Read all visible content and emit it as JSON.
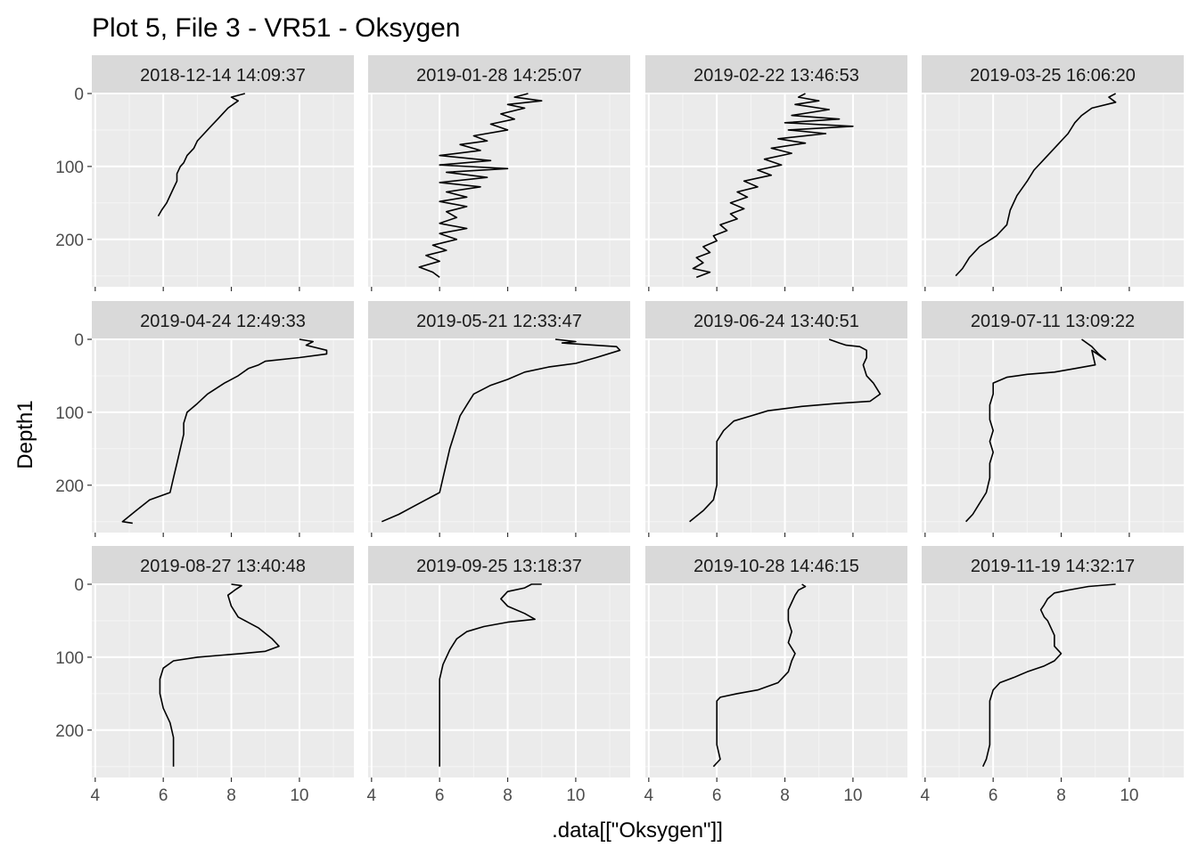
{
  "title": "Plot 5, File 3 - VR51  -  Oksygen",
  "chart_data": {
    "type": "line",
    "title": "Plot 5, File 3 - VR51  -  Oksygen",
    "xlabel": ".data[[\"Oksygen\"]]",
    "ylabel": "Depth1",
    "xlim": [
      3.9,
      11.6
    ],
    "ylim": [
      0,
      265
    ],
    "y_reversed": true,
    "grid": true,
    "xticks": [
      "4",
      "6",
      "8",
      "10"
    ],
    "yticks": [
      "0",
      "100",
      "200"
    ],
    "facets": [
      {
        "label": "2018-12-14 14:09:37",
        "points": [
          [
            8.4,
            0
          ],
          [
            8.0,
            5
          ],
          [
            8.2,
            10
          ],
          [
            7.9,
            20
          ],
          [
            7.6,
            35
          ],
          [
            7.4,
            45
          ],
          [
            7.2,
            55
          ],
          [
            7.0,
            65
          ],
          [
            6.9,
            75
          ],
          [
            6.7,
            85
          ],
          [
            6.6,
            95
          ],
          [
            6.5,
            100
          ],
          [
            6.4,
            110
          ],
          [
            6.4,
            120
          ],
          [
            6.3,
            130
          ],
          [
            6.2,
            140
          ],
          [
            6.1,
            150
          ],
          [
            5.95,
            160
          ],
          [
            5.85,
            168
          ]
        ]
      },
      {
        "label": "2019-01-28 14:25:07",
        "points": [
          [
            8.6,
            0
          ],
          [
            8.2,
            5
          ],
          [
            9.0,
            10
          ],
          [
            8.0,
            15
          ],
          [
            8.5,
            20
          ],
          [
            7.8,
            28
          ],
          [
            8.2,
            35
          ],
          [
            7.5,
            42
          ],
          [
            8.0,
            50
          ],
          [
            7.0,
            58
          ],
          [
            7.4,
            65
          ],
          [
            6.6,
            70
          ],
          [
            7.2,
            78
          ],
          [
            6.0,
            85
          ],
          [
            7.5,
            92
          ],
          [
            6.0,
            98
          ],
          [
            8.0,
            103
          ],
          [
            6.2,
            108
          ],
          [
            7.4,
            115
          ],
          [
            6.0,
            122
          ],
          [
            7.2,
            128
          ],
          [
            6.2,
            135
          ],
          [
            6.8,
            142
          ],
          [
            6.0,
            148
          ],
          [
            6.8,
            155
          ],
          [
            6.2,
            162
          ],
          [
            6.5,
            170
          ],
          [
            6.0,
            178
          ],
          [
            6.8,
            185
          ],
          [
            6.0,
            192
          ],
          [
            6.5,
            200
          ],
          [
            5.8,
            208
          ],
          [
            6.2,
            215
          ],
          [
            5.6,
            222
          ],
          [
            6.0,
            230
          ],
          [
            5.4,
            238
          ],
          [
            5.8,
            245
          ],
          [
            6.0,
            252
          ]
        ]
      },
      {
        "label": "2019-02-22 13:46:53",
        "points": [
          [
            8.6,
            0
          ],
          [
            8.4,
            5
          ],
          [
            9.0,
            10
          ],
          [
            8.3,
            15
          ],
          [
            9.3,
            22
          ],
          [
            8.2,
            30
          ],
          [
            9.6,
            35
          ],
          [
            8.0,
            40
          ],
          [
            10.0,
            45
          ],
          [
            8.1,
            50
          ],
          [
            9.2,
            55
          ],
          [
            7.8,
            62
          ],
          [
            8.6,
            68
          ],
          [
            7.6,
            75
          ],
          [
            8.2,
            82
          ],
          [
            7.4,
            90
          ],
          [
            7.9,
            98
          ],
          [
            7.2,
            105
          ],
          [
            7.6,
            112
          ],
          [
            6.8,
            120
          ],
          [
            7.2,
            128
          ],
          [
            6.6,
            135
          ],
          [
            6.9,
            142
          ],
          [
            6.4,
            150
          ],
          [
            6.8,
            158
          ],
          [
            6.4,
            165
          ],
          [
            6.6,
            172
          ],
          [
            6.1,
            180
          ],
          [
            6.3,
            188
          ],
          [
            5.9,
            195
          ],
          [
            6.0,
            202
          ],
          [
            5.6,
            210
          ],
          [
            5.8,
            218
          ],
          [
            5.4,
            225
          ],
          [
            5.6,
            232
          ],
          [
            5.3,
            240
          ],
          [
            5.8,
            245
          ],
          [
            5.4,
            252
          ]
        ]
      },
      {
        "label": "2019-03-25 16:06:20",
        "points": [
          [
            9.6,
            0
          ],
          [
            9.4,
            5
          ],
          [
            9.6,
            12
          ],
          [
            8.9,
            20
          ],
          [
            8.6,
            30
          ],
          [
            8.4,
            40
          ],
          [
            8.2,
            55
          ],
          [
            7.8,
            75
          ],
          [
            7.5,
            90
          ],
          [
            7.2,
            105
          ],
          [
            7.0,
            120
          ],
          [
            6.7,
            140
          ],
          [
            6.5,
            160
          ],
          [
            6.4,
            180
          ],
          [
            6.1,
            195
          ],
          [
            5.6,
            210
          ],
          [
            5.3,
            225
          ],
          [
            5.1,
            240
          ],
          [
            4.9,
            250
          ]
        ]
      },
      {
        "label": "2019-04-24 12:49:33",
        "points": [
          [
            10.0,
            0
          ],
          [
            10.4,
            3
          ],
          [
            10.2,
            8
          ],
          [
            10.8,
            15
          ],
          [
            10.8,
            20
          ],
          [
            10.0,
            25
          ],
          [
            9.0,
            30
          ],
          [
            8.8,
            35
          ],
          [
            8.5,
            40
          ],
          [
            8.2,
            50
          ],
          [
            7.8,
            60
          ],
          [
            7.3,
            75
          ],
          [
            7.0,
            88
          ],
          [
            6.7,
            100
          ],
          [
            6.6,
            115
          ],
          [
            6.6,
            130
          ],
          [
            6.5,
            150
          ],
          [
            6.4,
            170
          ],
          [
            6.3,
            190
          ],
          [
            6.2,
            210
          ],
          [
            5.6,
            220
          ],
          [
            5.2,
            235
          ],
          [
            4.8,
            250
          ],
          [
            5.1,
            252
          ]
        ]
      },
      {
        "label": "2019-05-21 12:33:47",
        "points": [
          [
            9.4,
            0
          ],
          [
            10.0,
            3
          ],
          [
            9.6,
            5
          ],
          [
            11.2,
            10
          ],
          [
            11.3,
            15
          ],
          [
            10.6,
            25
          ],
          [
            10.0,
            33
          ],
          [
            9.2,
            38
          ],
          [
            8.5,
            45
          ],
          [
            8.0,
            55
          ],
          [
            7.5,
            63
          ],
          [
            7.0,
            75
          ],
          [
            6.8,
            90
          ],
          [
            6.6,
            105
          ],
          [
            6.5,
            120
          ],
          [
            6.4,
            135
          ],
          [
            6.3,
            150
          ],
          [
            6.2,
            170
          ],
          [
            6.1,
            190
          ],
          [
            6.0,
            210
          ],
          [
            5.4,
            225
          ],
          [
            4.8,
            240
          ],
          [
            4.3,
            250
          ]
        ]
      },
      {
        "label": "2019-06-24 13:40:51",
        "points": [
          [
            9.3,
            0
          ],
          [
            9.6,
            5
          ],
          [
            9.8,
            8
          ],
          [
            10.2,
            10
          ],
          [
            10.4,
            15
          ],
          [
            10.4,
            25
          ],
          [
            10.3,
            35
          ],
          [
            10.4,
            50
          ],
          [
            10.6,
            60
          ],
          [
            10.8,
            75
          ],
          [
            10.5,
            85
          ],
          [
            9.5,
            88
          ],
          [
            8.5,
            92
          ],
          [
            7.5,
            98
          ],
          [
            7.0,
            105
          ],
          [
            6.5,
            112
          ],
          [
            6.2,
            125
          ],
          [
            6.0,
            140
          ],
          [
            6.0,
            160
          ],
          [
            6.0,
            180
          ],
          [
            6.0,
            200
          ],
          [
            5.9,
            220
          ],
          [
            5.6,
            235
          ],
          [
            5.2,
            250
          ]
        ]
      },
      {
        "label": "2019-07-11 13:09:22",
        "points": [
          [
            8.6,
            0
          ],
          [
            8.9,
            10
          ],
          [
            9.1,
            20
          ],
          [
            9.3,
            28
          ],
          [
            8.9,
            15
          ],
          [
            9.0,
            35
          ],
          [
            8.4,
            40
          ],
          [
            7.8,
            45
          ],
          [
            7.0,
            48
          ],
          [
            6.4,
            52
          ],
          [
            6.0,
            60
          ],
          [
            6.0,
            75
          ],
          [
            5.9,
            90
          ],
          [
            5.9,
            110
          ],
          [
            6.0,
            125
          ],
          [
            5.9,
            140
          ],
          [
            6.0,
            155
          ],
          [
            5.9,
            170
          ],
          [
            5.9,
            190
          ],
          [
            5.8,
            210
          ],
          [
            5.6,
            225
          ],
          [
            5.4,
            240
          ],
          [
            5.2,
            250
          ]
        ]
      },
      {
        "label": "2019-08-27 13:40:48",
        "points": [
          [
            8.0,
            0
          ],
          [
            8.3,
            2
          ],
          [
            8.1,
            8
          ],
          [
            7.9,
            15
          ],
          [
            8.0,
            30
          ],
          [
            8.2,
            45
          ],
          [
            8.8,
            60
          ],
          [
            9.2,
            75
          ],
          [
            9.4,
            85
          ],
          [
            9.0,
            92
          ],
          [
            8.3,
            95
          ],
          [
            7.0,
            100
          ],
          [
            6.3,
            105
          ],
          [
            6.0,
            115
          ],
          [
            5.9,
            130
          ],
          [
            5.9,
            150
          ],
          [
            6.0,
            170
          ],
          [
            6.2,
            190
          ],
          [
            6.3,
            210
          ],
          [
            6.3,
            230
          ],
          [
            6.3,
            250
          ]
        ]
      },
      {
        "label": "2019-09-25 13:18:37",
        "points": [
          [
            9.0,
            0
          ],
          [
            8.7,
            0
          ],
          [
            8.5,
            5
          ],
          [
            8.0,
            10
          ],
          [
            7.8,
            20
          ],
          [
            8.0,
            30
          ],
          [
            8.5,
            40
          ],
          [
            8.8,
            48
          ],
          [
            8.0,
            52
          ],
          [
            7.3,
            58
          ],
          [
            6.8,
            65
          ],
          [
            6.5,
            75
          ],
          [
            6.3,
            90
          ],
          [
            6.1,
            110
          ],
          [
            6.0,
            130
          ],
          [
            6.0,
            150
          ],
          [
            6.0,
            170
          ],
          [
            6.0,
            190
          ],
          [
            6.0,
            210
          ],
          [
            6.0,
            230
          ],
          [
            6.0,
            250
          ]
        ]
      },
      {
        "label": "2019-10-28 14:46:15",
        "points": [
          [
            8.5,
            0
          ],
          [
            8.6,
            3
          ],
          [
            8.4,
            8
          ],
          [
            8.3,
            15
          ],
          [
            8.2,
            25
          ],
          [
            8.1,
            35
          ],
          [
            8.1,
            50
          ],
          [
            8.2,
            65
          ],
          [
            8.1,
            80
          ],
          [
            8.3,
            95
          ],
          [
            8.2,
            105
          ],
          [
            8.1,
            120
          ],
          [
            7.8,
            135
          ],
          [
            7.2,
            145
          ],
          [
            6.6,
            150
          ],
          [
            6.1,
            155
          ],
          [
            6.0,
            160
          ],
          [
            6.0,
            180
          ],
          [
            6.0,
            200
          ],
          [
            6.0,
            220
          ],
          [
            6.1,
            240
          ],
          [
            5.9,
            250
          ]
        ]
      },
      {
        "label": "2019-11-19 14:32:17",
        "points": [
          [
            9.6,
            0
          ],
          [
            8.8,
            3
          ],
          [
            8.2,
            8
          ],
          [
            7.8,
            12
          ],
          [
            7.6,
            20
          ],
          [
            7.5,
            28
          ],
          [
            7.4,
            35
          ],
          [
            7.5,
            45
          ],
          [
            7.6,
            50
          ],
          [
            7.7,
            60
          ],
          [
            7.8,
            70
          ],
          [
            7.8,
            85
          ],
          [
            8.0,
            95
          ],
          [
            7.8,
            105
          ],
          [
            7.5,
            112
          ],
          [
            7.0,
            120
          ],
          [
            6.6,
            128
          ],
          [
            6.2,
            135
          ],
          [
            6.0,
            145
          ],
          [
            5.9,
            160
          ],
          [
            5.9,
            180
          ],
          [
            5.9,
            200
          ],
          [
            5.9,
            220
          ],
          [
            5.8,
            240
          ],
          [
            5.7,
            250
          ]
        ]
      }
    ]
  }
}
